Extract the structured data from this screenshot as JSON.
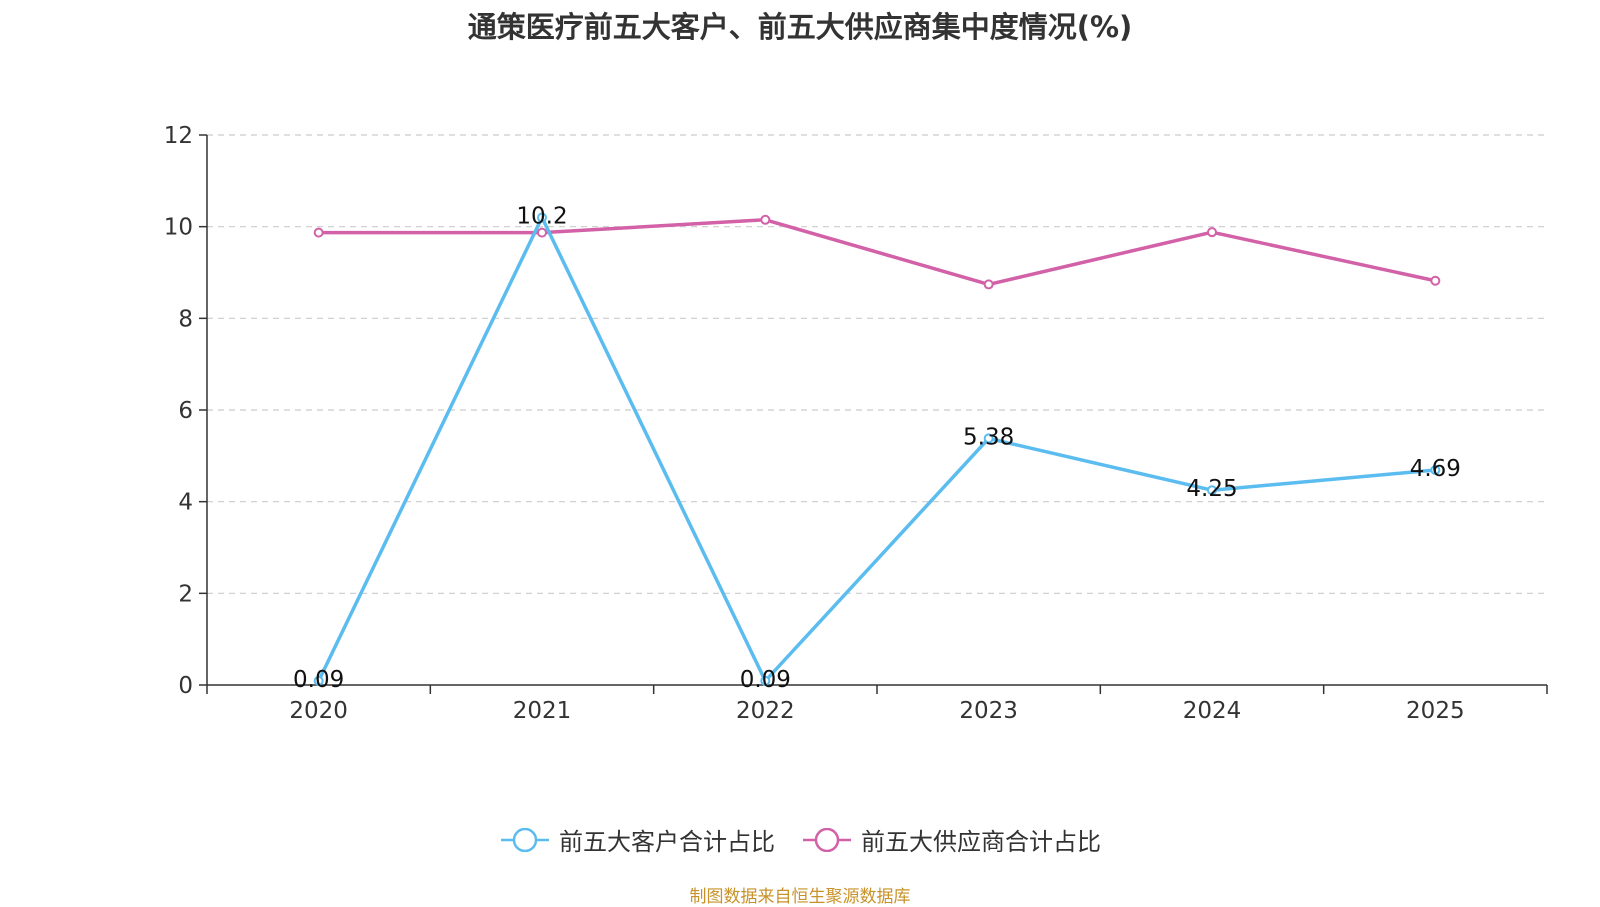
{
  "chart_data": {
    "type": "line",
    "title": "通策医疗前五大客户、前五大供应商集中度情况(%)",
    "categories": [
      "2020",
      "2021",
      "2022",
      "2023",
      "2024",
      "2025"
    ],
    "yticks": [
      "0",
      "2",
      "4",
      "6",
      "8",
      "10",
      "12"
    ],
    "ylim": [
      0,
      12
    ],
    "grid": true,
    "legend_position": "bottom",
    "series": [
      {
        "name": "前五大客户合计占比",
        "color": "#5bbcf0",
        "values": [
          0.09,
          10.2,
          0.09,
          5.38,
          4.25,
          4.69
        ],
        "labels": [
          "0.09",
          "10.2",
          "0.09",
          "5.38",
          "4.25",
          "4.69"
        ]
      },
      {
        "name": "前五大供应商合计占比",
        "color": "#d261a8",
        "values": [
          9.87,
          9.87,
          10.15,
          8.74,
          9.88,
          8.82
        ]
      }
    ]
  },
  "source_text": "制图数据来自恒生聚源数据库"
}
